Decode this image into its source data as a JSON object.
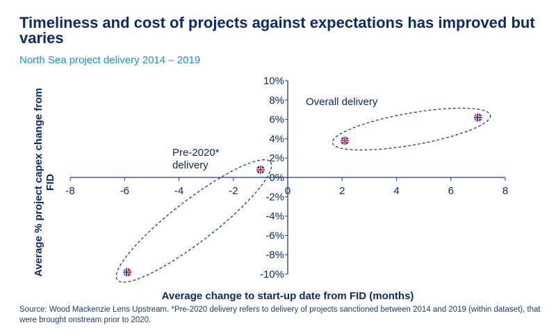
{
  "title": "Timeliness and cost of projects against expectations has improved but varies",
  "subtitle": "North Sea project delivery 2014 – 2019",
  "source": "Source: Wood Mackenzie Lens Upstream. *Pre-2020 delivery refers to delivery of projects sanctioned between 2014 and 2019 (within dataset), that were brought onstream prior to 2020.",
  "chart_data": {
    "type": "scatter",
    "xlabel": "Average change to start-up date from FID (months)",
    "ylabel": "Average % project capex change from FID",
    "xlim": [
      -8,
      8
    ],
    "ylim": [
      -10,
      10
    ],
    "xticks": [
      "-8",
      "-6",
      "-4",
      "-2",
      "0",
      "2",
      "4",
      "6",
      "8"
    ],
    "yticks": [
      "10%",
      "8%",
      "6%",
      "4%",
      "2%",
      "0%",
      "-2%",
      "-4%",
      "-6%",
      "-8%",
      "-10%"
    ],
    "points": [
      {
        "x": -5.9,
        "y": -9.8,
        "marker": "norway-flag"
      },
      {
        "x": -1.0,
        "y": 0.8,
        "marker": "uk-flag"
      },
      {
        "x": 2.1,
        "y": 3.8,
        "marker": "uk-flag"
      },
      {
        "x": 7.0,
        "y": 6.2,
        "marker": "norway-flag"
      }
    ],
    "annotations": [
      {
        "text": "Overall delivery",
        "group": [
          2,
          3
        ]
      },
      {
        "text": "Pre-2020*\ndelivery",
        "group": [
          0,
          1
        ]
      }
    ],
    "grid": false,
    "colors": {
      "axis": "#1c3d7a",
      "text": "#0b2a6b",
      "subtitle": "#1a8fd6"
    }
  }
}
